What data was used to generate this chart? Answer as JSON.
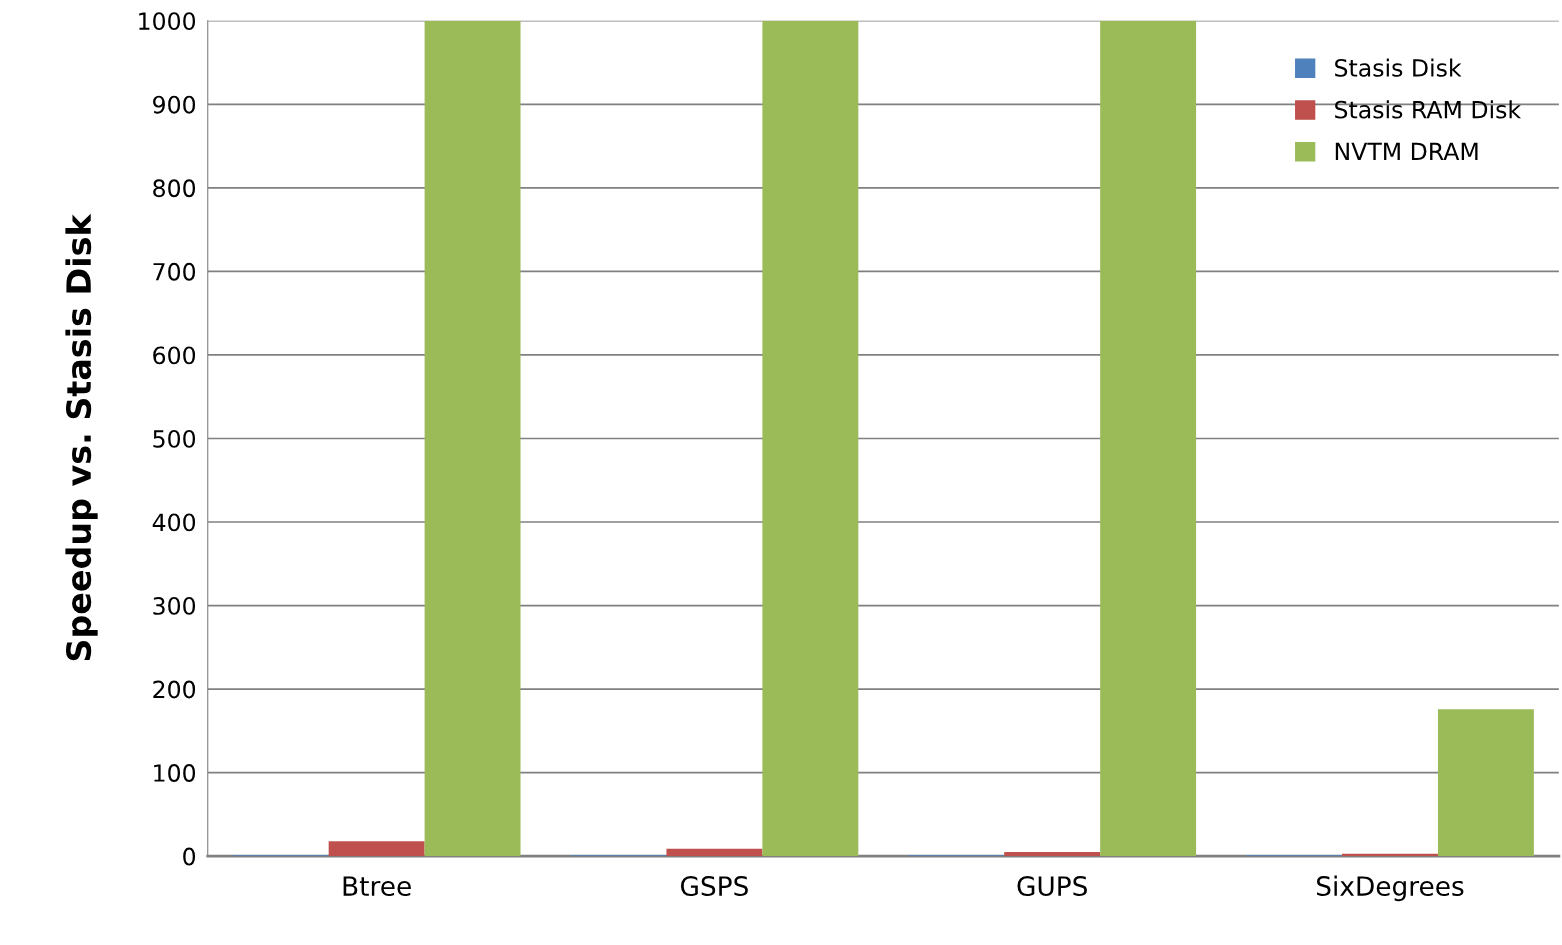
{
  "chart_data": {
    "type": "bar",
    "ylabel": "Speedup vs. Stasis Disk",
    "categories": [
      "Btree",
      "GSPS",
      "GUPS",
      "SixDegrees"
    ],
    "series": [
      {
        "name": "Stasis Disk",
        "color": "#4f81bd",
        "values": [
          1,
          1,
          1,
          1
        ]
      },
      {
        "name": "Stasis RAM Disk",
        "color": "#c0504d",
        "values": [
          18,
          9,
          5,
          3
        ]
      },
      {
        "name": "NVTM DRAM",
        "color": "#9bbb59",
        "values": [
          1000,
          1000,
          1000,
          176
        ]
      }
    ],
    "ylim": [
      0,
      1000
    ],
    "yticks": [
      0,
      100,
      200,
      300,
      400,
      500,
      600,
      700,
      800,
      900,
      1000
    ],
    "grid": "y",
    "legend": "top right"
  }
}
